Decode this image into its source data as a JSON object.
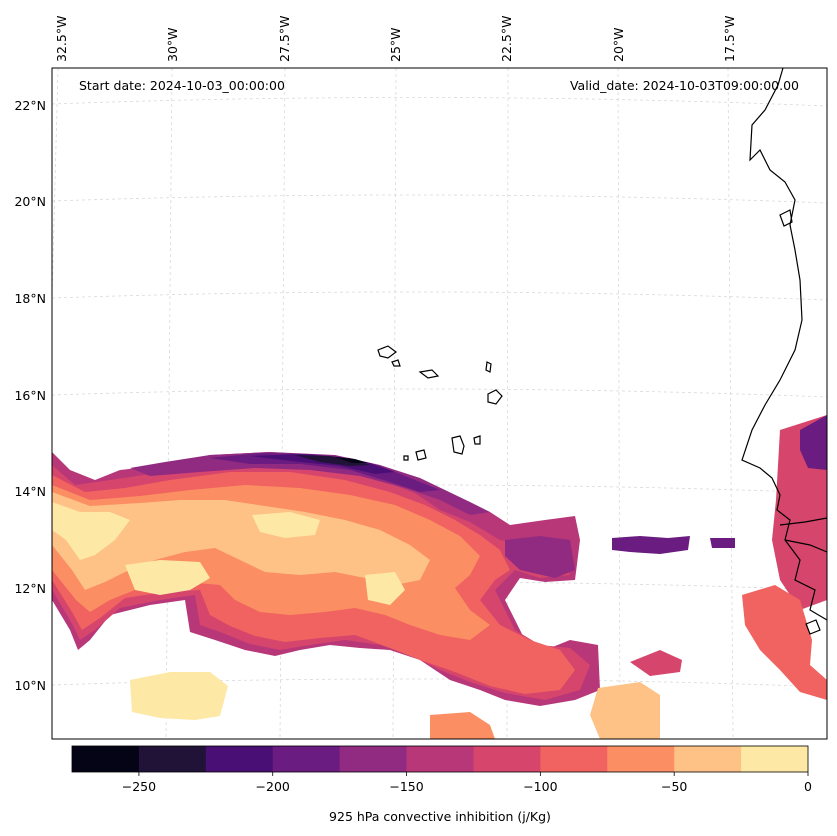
{
  "map": {
    "start_label": "Start date: 2024-10-03_00:00:00",
    "valid_label": "Valid_date: 2024-10-03T09:00:00.00",
    "lon_labels": [
      "32.5°W",
      "30°W",
      "27.5°W",
      "25°W",
      "22.5°W",
      "20°W",
      "17.5°W"
    ],
    "lat_labels": [
      "22°N",
      "20°N",
      "18°N",
      "16°N",
      "14°N",
      "12°N",
      "10°N"
    ],
    "coastline_color": "#000000",
    "gridline_color": "#cccccc"
  },
  "colorbar": {
    "label": "925 hPa convective inhibition (j/Kg)",
    "ticks": [
      "−250",
      "−200",
      "−150",
      "−100",
      "−50",
      "0"
    ],
    "tick_values": [
      -250,
      -200,
      -150,
      -100,
      -50,
      0
    ],
    "range": [
      -275,
      0
    ],
    "levels": [
      -275,
      -250,
      -225,
      -200,
      -175,
      -150,
      -125,
      -100,
      -75,
      -50,
      -25,
      0
    ],
    "colors": [
      "#050416",
      "#201337",
      "#4a0f75",
      "#6b1c80",
      "#912b81",
      "#b73779",
      "#d6456c",
      "#f06360",
      "#fb8e62",
      "#fec286",
      "#fde8a5"
    ]
  }
}
